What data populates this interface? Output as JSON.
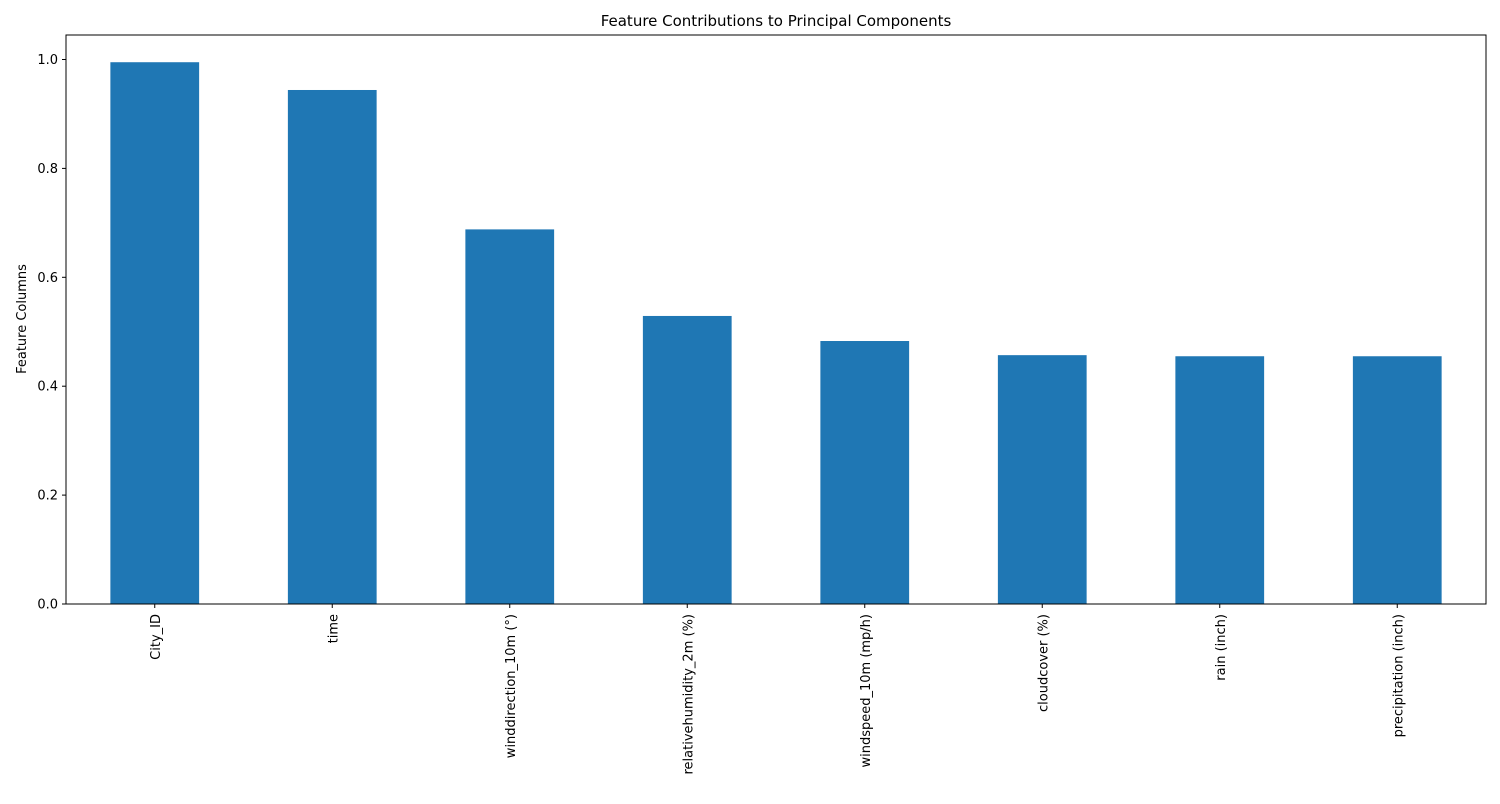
{
  "chart_data": {
    "type": "bar",
    "title": "Feature Contributions to Principal Components",
    "xlabel": "",
    "ylabel": "Feature Columns",
    "categories": [
      "City_ID",
      "time",
      "winddirection_10m (°)",
      "relativehumidity_2m (%)",
      "windspeed_10m (mp/h)",
      "cloudcover (%)",
      "rain (inch)",
      "precipitation (inch)"
    ],
    "values": [
      0.995,
      0.944,
      0.688,
      0.529,
      0.483,
      0.457,
      0.455,
      0.455
    ],
    "ylim": [
      0,
      1.045
    ],
    "yticks": [
      0.0,
      0.2,
      0.4,
      0.6,
      0.8,
      1.0
    ],
    "ytick_labels": [
      "0.0",
      "0.2",
      "0.4",
      "0.6",
      "0.8",
      "1.0"
    ],
    "grid": false,
    "legend": "none",
    "bar_color": "#1f77b4"
  }
}
